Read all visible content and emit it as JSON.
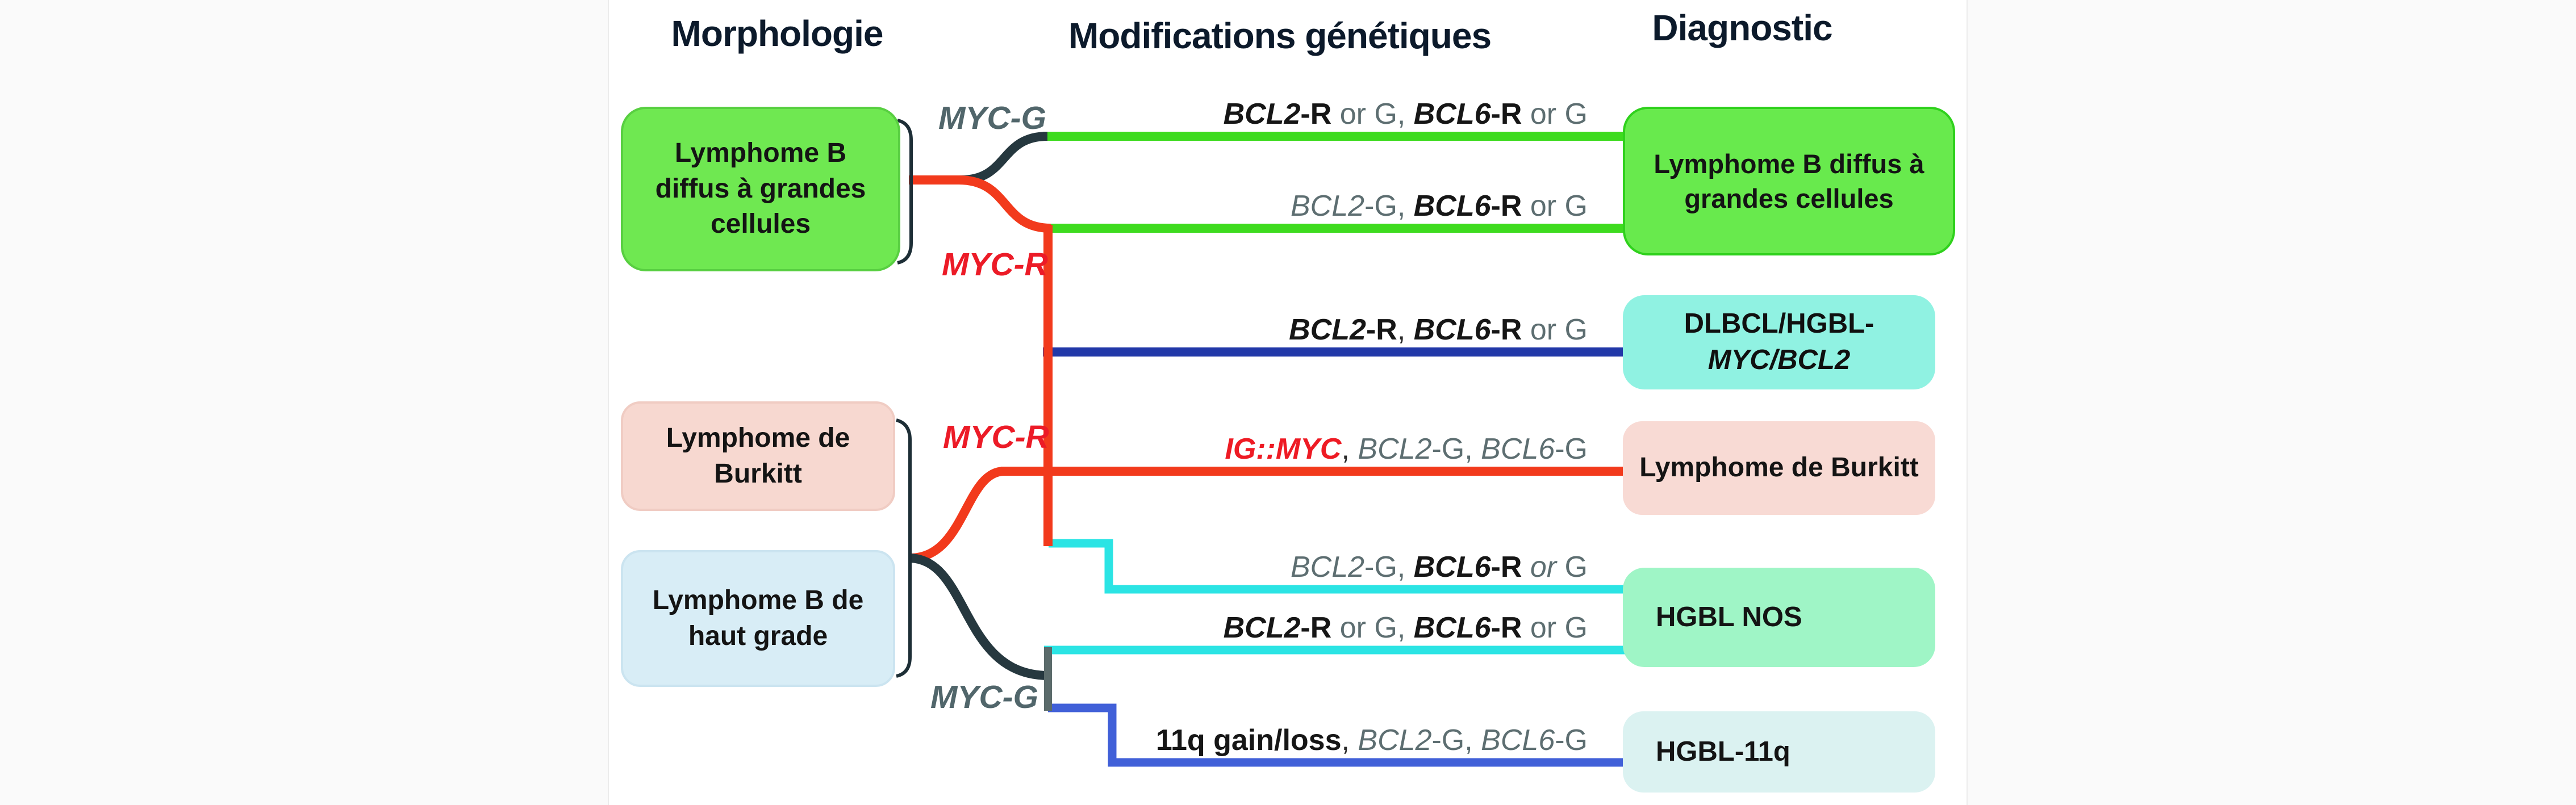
{
  "figure": {
    "headers": {
      "morphology": "Morphologie",
      "genetics": "Modifications génétiques",
      "diagnostic": "Diagnostic"
    },
    "morphology_boxes": [
      {
        "label": "Lymphome B diffus à grandes cellules",
        "fill": "#6fe851",
        "border": "#58cf41"
      },
      {
        "label": "Lymphome de Burkitt",
        "fill": "#f7d8d0",
        "border": "#f0ccc3"
      },
      {
        "label": "Lymphome B de haut grade",
        "fill": "#d8edf6",
        "border": "#cbe4f0"
      }
    ],
    "branch_labels": [
      {
        "label": "MYC-G",
        "color": "#51666b"
      },
      {
        "label": "MYC-R",
        "color": "#ec1b27"
      },
      {
        "label": "MYC-R",
        "color": "#ec1b27"
      },
      {
        "label": "MYC-G",
        "color": "#51666b"
      }
    ],
    "genetic_rows": [
      {
        "segments": [
          {
            "t": "BCL2",
            "s": "bi"
          },
          {
            "t": "-R",
            "s": "b"
          },
          {
            "t": " or G, ",
            "s": "g"
          },
          {
            "t": "BCL6",
            "s": "bi"
          },
          {
            "t": "-R",
            "s": "b"
          },
          {
            "t": " or G",
            "s": "g"
          }
        ]
      },
      {
        "segments": [
          {
            "t": "BCL2",
            "s": "gi"
          },
          {
            "t": "-G, ",
            "s": "g"
          },
          {
            "t": "BCL6",
            "s": "bi"
          },
          {
            "t": "-R",
            "s": "b"
          },
          {
            "t": " or G",
            "s": "g"
          }
        ]
      },
      {
        "segments": [
          {
            "t": "BCL2",
            "s": "bi"
          },
          {
            "t": "-R",
            "s": "b"
          },
          {
            "t": ", ",
            "s": "d"
          },
          {
            "t": "BCL6",
            "s": "bi"
          },
          {
            "t": "-R",
            "s": "b"
          },
          {
            "t": " or G",
            "s": "g"
          }
        ]
      },
      {
        "segments": [
          {
            "t": "IG::MYC",
            "s": "r"
          },
          {
            "t": ", ",
            "s": "d"
          },
          {
            "t": "BCL2",
            "s": "gi"
          },
          {
            "t": "-G, ",
            "s": "g"
          },
          {
            "t": "BCL6",
            "s": "gi"
          },
          {
            "t": "-G",
            "s": "g"
          }
        ]
      },
      {
        "segments": [
          {
            "t": "BCL2",
            "s": "gi"
          },
          {
            "t": "-G, ",
            "s": "g"
          },
          {
            "t": "BCL6",
            "s": "bi"
          },
          {
            "t": "-R",
            "s": "b"
          },
          {
            "t": " ",
            "s": "g"
          },
          {
            "t": "or",
            "s": "gi"
          },
          {
            "t": " G",
            "s": "g"
          }
        ]
      },
      {
        "segments": [
          {
            "t": "BCL2",
            "s": "bi"
          },
          {
            "t": "-R",
            "s": "b"
          },
          {
            "t": " or G, ",
            "s": "g"
          },
          {
            "t": "BCL6",
            "s": "bi"
          },
          {
            "t": "-R",
            "s": "b"
          },
          {
            "t": " or G",
            "s": "g"
          }
        ]
      },
      {
        "segments": [
          {
            "t": "11q gain/loss",
            "s": "b"
          },
          {
            "t": ", ",
            "s": "d"
          },
          {
            "t": "BCL2",
            "s": "gi"
          },
          {
            "t": "-G, ",
            "s": "g"
          },
          {
            "t": "BCL6",
            "s": "gi"
          },
          {
            "t": "-G",
            "s": "g"
          }
        ]
      }
    ],
    "diagnosis_boxes": [
      {
        "label": "Lymphome B diffus à grandes cellules",
        "fill": "#68ea4d",
        "border": "#2fd11c"
      },
      {
        "segments": [
          {
            "t": "DLBCL/HGBL-",
            "s": "plain"
          },
          {
            "t": "MYC/BCL2",
            "s": "it"
          }
        ],
        "fill": "#90f2e2"
      },
      {
        "label": "Lymphome de Burkitt",
        "fill": "#f8dad4"
      },
      {
        "label": "HGBL NOS",
        "fill": "#9ff5c6"
      },
      {
        "label": "HGBL-11q",
        "fill": "#dbf2f1"
      }
    ],
    "line_colors": {
      "green": "#3edb1f",
      "dark": "#26383f",
      "red": "#f23a1c",
      "navy": "#2138a8",
      "cyan": "#2be4e4",
      "royal": "#4160d8",
      "grey": "#5b6b6b",
      "bracket": "#1d2e36"
    }
  }
}
